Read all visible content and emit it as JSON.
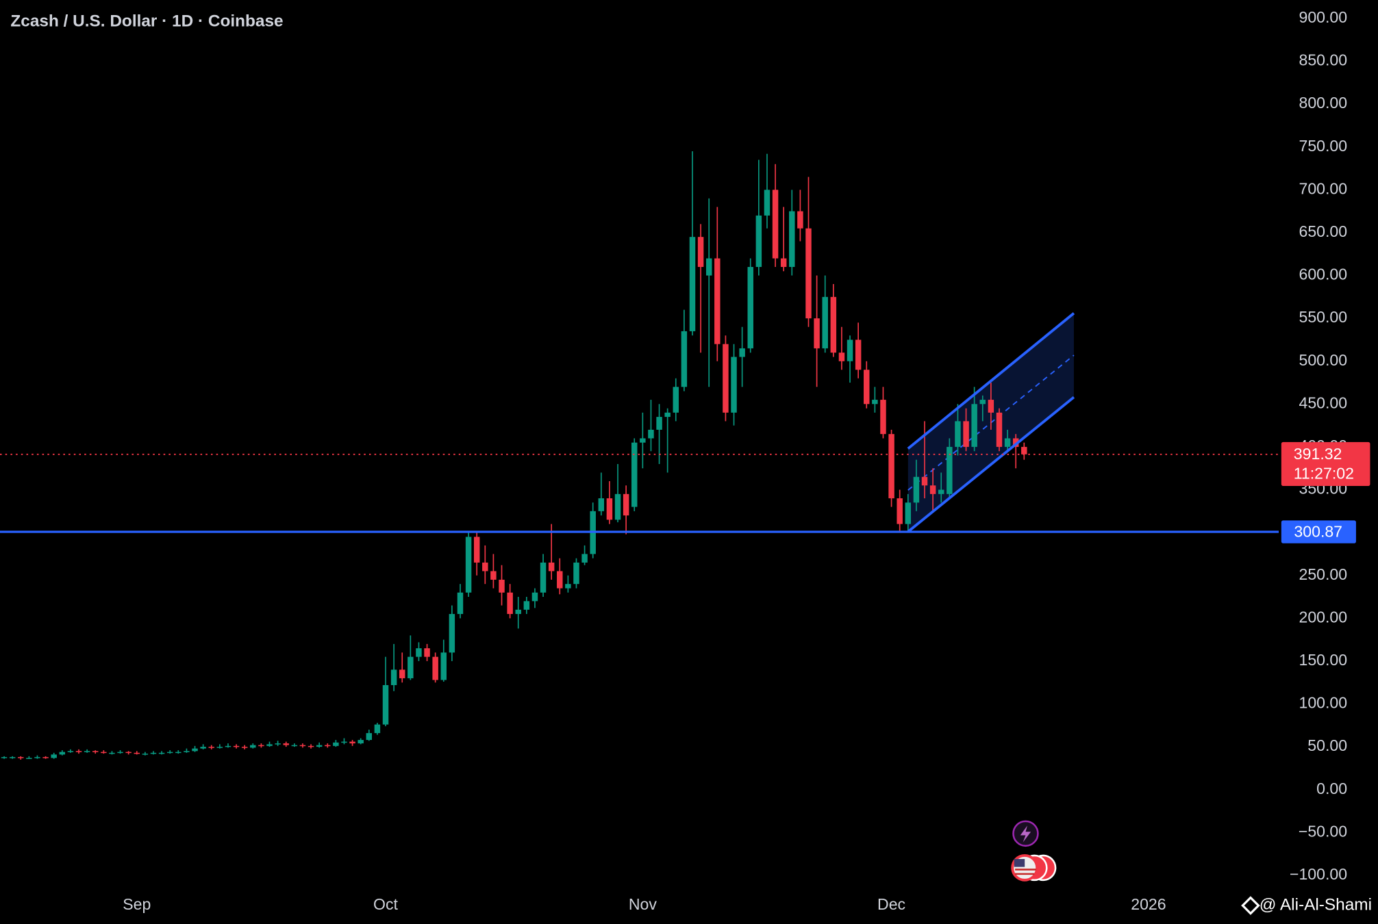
{
  "chart_data": {
    "type": "candlestick",
    "title": "Zcash / U.S. Dollar · 1D · Coinbase",
    "up_color": "#089981",
    "down_color": "#f23645",
    "open": [
      37,
      38,
      38,
      37,
      37,
      38,
      37,
      41,
      44,
      45,
      44,
      45,
      44,
      43,
      43,
      44,
      43,
      42,
      42,
      43,
      43,
      44,
      44,
      45,
      48,
      50,
      49,
      50,
      51,
      50,
      49,
      52,
      51,
      53,
      54,
      52,
      52,
      51,
      50,
      52,
      51,
      55,
      56,
      54,
      58,
      66,
      76,
      122,
      140,
      130,
      155,
      165,
      155,
      128,
      160,
      205,
      230,
      295,
      265,
      255,
      245,
      230,
      205,
      210,
      220,
      230,
      265,
      255,
      235,
      240,
      265,
      275,
      325,
      340,
      315,
      345,
      330,
      405,
      410,
      420,
      435,
      440,
      470,
      535,
      645,
      600,
      620,
      520,
      440,
      505,
      515,
      610,
      670,
      700,
      620,
      610,
      675,
      655,
      550,
      515,
      575,
      510,
      500,
      525,
      490,
      450,
      455,
      415,
      340,
      310,
      335,
      365,
      355,
      345,
      345,
      400,
      430,
      400,
      450,
      455,
      440,
      400,
      410,
      400
    ],
    "high": [
      39,
      39,
      39,
      39,
      40,
      39,
      43,
      46,
      47,
      47,
      47,
      46,
      46,
      45,
      46,
      45,
      45,
      44,
      45,
      45,
      46,
      46,
      48,
      51,
      53,
      52,
      53,
      54,
      53,
      52,
      54,
      54,
      56,
      57,
      56,
      54,
      54,
      53,
      55,
      54,
      58,
      60,
      58,
      60,
      70,
      78,
      155,
      170,
      160,
      180,
      172,
      170,
      160,
      175,
      215,
      240,
      300,
      300,
      285,
      275,
      262,
      240,
      225,
      225,
      235,
      275,
      310,
      270,
      250,
      270,
      285,
      335,
      370,
      360,
      380,
      355,
      410,
      440,
      455,
      450,
      445,
      480,
      560,
      745,
      660,
      690,
      680,
      530,
      520,
      540,
      620,
      735,
      742,
      730,
      680,
      700,
      700,
      715,
      600,
      600,
      590,
      540,
      530,
      545,
      500,
      470,
      470,
      420,
      350,
      345,
      385,
      430,
      375,
      370,
      410,
      450,
      445,
      470,
      460,
      475,
      445,
      420,
      415,
      405
    ],
    "low": [
      36,
      36,
      35,
      36,
      36,
      36,
      36,
      40,
      43,
      42,
      43,
      42,
      42,
      41,
      42,
      41,
      41,
      40,
      41,
      41,
      42,
      42,
      43,
      44,
      47,
      47,
      48,
      49,
      48,
      47,
      48,
      49,
      50,
      51,
      50,
      50,
      49,
      48,
      49,
      49,
      50,
      53,
      51,
      53,
      57,
      64,
      74,
      115,
      125,
      128,
      150,
      150,
      125,
      126,
      150,
      200,
      225,
      250,
      240,
      235,
      215,
      200,
      188,
      205,
      212,
      225,
      245,
      228,
      230,
      235,
      262,
      270,
      320,
      310,
      312,
      298,
      325,
      375,
      395,
      380,
      370,
      430,
      465,
      530,
      510,
      470,
      500,
      430,
      425,
      470,
      510,
      600,
      655,
      610,
      605,
      600,
      640,
      540,
      470,
      510,
      505,
      490,
      475,
      480,
      445,
      440,
      410,
      330,
      300,
      302,
      325,
      340,
      325,
      335,
      340,
      390,
      395,
      395,
      430,
      420,
      395,
      395,
      375,
      385
    ],
    "close": [
      38,
      38,
      37,
      37,
      38,
      37,
      41,
      44,
      45,
      44,
      45,
      44,
      43,
      43,
      44,
      43,
      42,
      42,
      43,
      43,
      44,
      44,
      45,
      48,
      50,
      49,
      50,
      51,
      50,
      49,
      52,
      51,
      53,
      54,
      52,
      52,
      51,
      50,
      52,
      51,
      55,
      56,
      54,
      58,
      66,
      76,
      122,
      140,
      130,
      155,
      165,
      155,
      128,
      160,
      205,
      230,
      295,
      265,
      255,
      245,
      230,
      205,
      210,
      220,
      230,
      265,
      255,
      235,
      240,
      265,
      275,
      325,
      340,
      315,
      345,
      320,
      405,
      410,
      420,
      435,
      440,
      470,
      535,
      645,
      610,
      620,
      520,
      440,
      505,
      515,
      610,
      670,
      700,
      620,
      610,
      675,
      655,
      550,
      515,
      575,
      510,
      500,
      525,
      490,
      450,
      455,
      415,
      340,
      310,
      335,
      365,
      355,
      345,
      350,
      400,
      430,
      400,
      450,
      455,
      440,
      400,
      410,
      400,
      391.32
    ],
    "countdown": "11:27:02",
    "level": 300.87,
    "channel": {
      "upper": [
        [
          109,
          398
        ],
        [
          129,
          556
        ]
      ],
      "lower": [
        [
          109,
          301
        ],
        [
          129,
          458
        ]
      ]
    },
    "xlim": [
      -0.5,
      153.7
    ],
    "xticks": [
      {
        "value": 16,
        "label": "Sep"
      },
      {
        "value": 46,
        "label": "Oct"
      },
      {
        "value": 77,
        "label": "Nov"
      },
      {
        "value": 107,
        "label": "Dec"
      },
      {
        "value": 138,
        "label": "2026"
      }
    ],
    "ylim": [
      -100,
      900
    ],
    "yticks": [
      {
        "value": 900,
        "label": "900.00"
      },
      {
        "value": 850,
        "label": "850.00"
      },
      {
        "value": 800,
        "label": "800.00"
      },
      {
        "value": 750,
        "label": "750.00"
      },
      {
        "value": 700,
        "label": "700.00"
      },
      {
        "value": 650,
        "label": "650.00"
      },
      {
        "value": 600,
        "label": "600.00"
      },
      {
        "value": 550,
        "label": "550.00"
      },
      {
        "value": 500,
        "label": "500.00"
      },
      {
        "value": 450,
        "label": "450.00"
      },
      {
        "value": 400,
        "label": "400.00"
      },
      {
        "value": 350,
        "label": "350.00"
      },
      {
        "value": 300,
        "label": "300.00"
      },
      {
        "value": 250,
        "label": "250.00"
      },
      {
        "value": 200,
        "label": "200.00"
      },
      {
        "value": 150,
        "label": "150.00"
      },
      {
        "value": 100,
        "label": "100.00"
      },
      {
        "value": 50,
        "label": "50.00"
      },
      {
        "value": 0,
        "label": "0.00"
      },
      {
        "value": -50,
        "label": "−50.00"
      },
      {
        "value": -100,
        "label": "−100.00"
      }
    ],
    "watermark": "@ Ali-Al-Shami"
  }
}
